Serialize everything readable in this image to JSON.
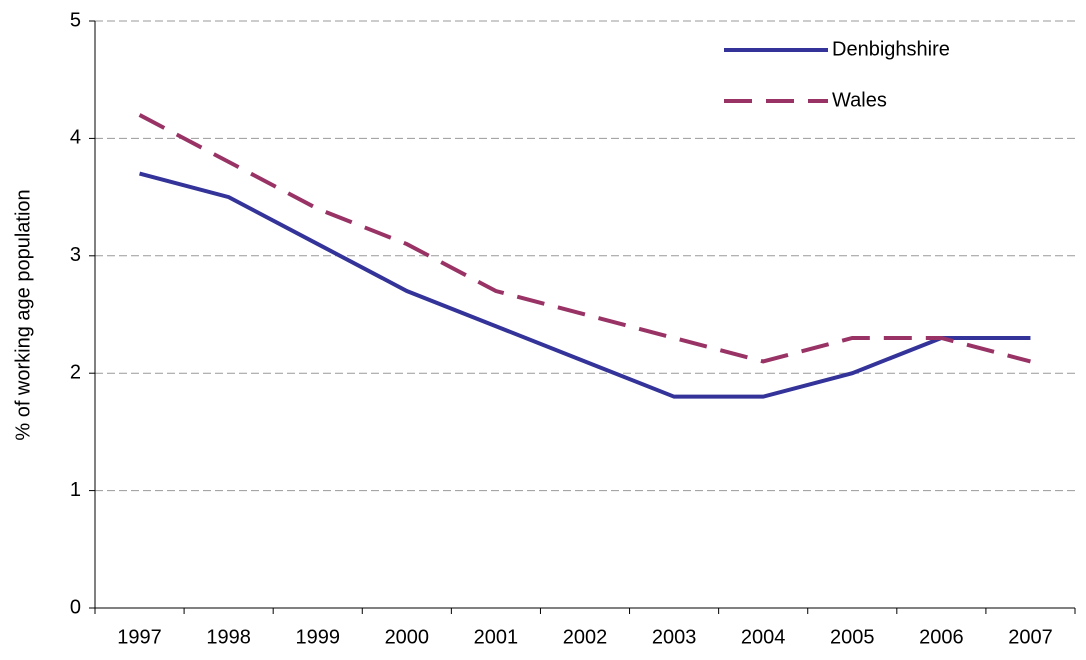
{
  "chart_data": {
    "type": "line",
    "y_label": "% of working age population",
    "categories": [
      "1997",
      "1998",
      "1999",
      "2000",
      "2001",
      "2002",
      "2003",
      "2004",
      "2005",
      "2006",
      "2007"
    ],
    "series": [
      {
        "name": "Denbighshire",
        "color": "#333399",
        "dashed": false,
        "values": [
          3.7,
          3.5,
          3.1,
          2.7,
          2.4,
          2.1,
          1.8,
          1.8,
          2.0,
          2.3,
          2.3
        ]
      },
      {
        "name": "Wales",
        "color": "#993366",
        "dashed": true,
        "values": [
          4.2,
          3.8,
          3.4,
          3.1,
          2.7,
          2.5,
          2.3,
          2.1,
          2.3,
          2.3,
          2.1
        ]
      }
    ],
    "ylim": [
      0,
      5
    ],
    "yticks": [
      0,
      1,
      2,
      3,
      4,
      5
    ],
    "grid": true,
    "legend": "top-right"
  }
}
